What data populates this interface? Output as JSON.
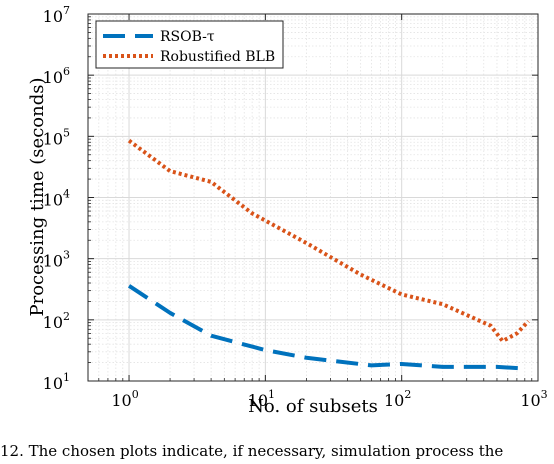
{
  "caption": "12.  The chosen plots indicate, if necessary, simulation process the",
  "chart_data": {
    "type": "line",
    "xlabel": "No. of subsets",
    "ylabel": "Processing time (seconds)",
    "xscale": "log",
    "yscale": "log",
    "xlim": [
      0.5,
      1000
    ],
    "ylim": [
      10,
      10000000
    ],
    "grid": true,
    "minor_grid": true,
    "legend_position": "top-left",
    "x_ticks": [
      {
        "base": "10",
        "exp": "0"
      },
      {
        "base": "10",
        "exp": "1"
      },
      {
        "base": "10",
        "exp": "2"
      },
      {
        "base": "10",
        "exp": "3"
      }
    ],
    "y_ticks": [
      {
        "base": "10",
        "exp": "1"
      },
      {
        "base": "10",
        "exp": "2"
      },
      {
        "base": "10",
        "exp": "3"
      },
      {
        "base": "10",
        "exp": "4"
      },
      {
        "base": "10",
        "exp": "5"
      },
      {
        "base": "10",
        "exp": "6"
      },
      {
        "base": "10",
        "exp": "7"
      }
    ],
    "series": [
      {
        "name": "RSOB-τ",
        "color": "#0072BD",
        "style": "dashed",
        "points": [
          [
            1,
            360
          ],
          [
            2,
            130
          ],
          [
            4,
            55
          ],
          [
            10,
            32
          ],
          [
            20,
            24
          ],
          [
            60,
            18
          ],
          [
            100,
            19
          ],
          [
            200,
            17
          ],
          [
            500,
            17
          ],
          [
            800,
            16
          ]
        ]
      },
      {
        "name": "Robustified BLB",
        "color": "#D95319",
        "style": "dotted",
        "points": [
          [
            1,
            85000
          ],
          [
            2,
            27000
          ],
          [
            4,
            18000
          ],
          [
            8,
            5500
          ],
          [
            20,
            1800
          ],
          [
            50,
            550
          ],
          [
            100,
            260
          ],
          [
            200,
            180
          ],
          [
            300,
            120
          ],
          [
            450,
            80
          ],
          [
            550,
            45
          ],
          [
            700,
            60
          ],
          [
            850,
            95
          ]
        ]
      }
    ]
  }
}
